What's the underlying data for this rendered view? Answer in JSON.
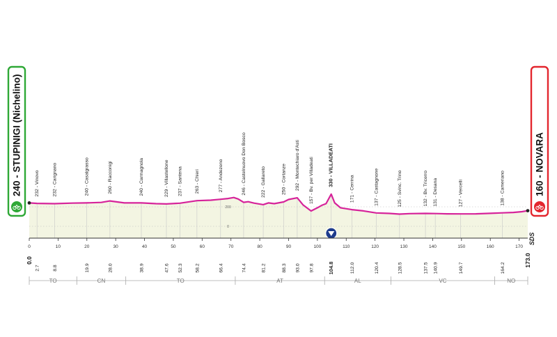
{
  "chart_data": {
    "type": "area",
    "title": "",
    "xlabel": "",
    "ylabel": "",
    "xlim": [
      0,
      173
    ],
    "ylim": [
      0,
      330
    ],
    "colors": {
      "profile_line": "#d6239a",
      "profile_fill": "#f3f5e2",
      "start_badge_border": "#2ea836",
      "finish_badge_border": "#e3262e",
      "axis": "#333333",
      "grid": "#b9b9b9"
    },
    "start": {
      "label": "240 - STUPINIGI (Nichelino)",
      "km": "0.0",
      "icon": "bike-icon"
    },
    "finish": {
      "label": "160 - NOVARA",
      "km": "173.0",
      "icon": "bike-icon"
    },
    "side_label": "SDS",
    "series": [
      {
        "x": [
          0,
          2.7,
          8.8,
          15,
          19.9,
          25,
          28.0,
          33,
          38.9,
          44,
          47.6,
          52.3,
          58.2,
          63,
          66.4,
          69,
          71,
          72.5,
          74.4,
          76,
          78,
          81.2,
          83,
          85,
          88.3,
          90,
          93.0,
          95,
          97.8,
          100,
          101.5,
          103,
          104.8,
          106,
          108,
          112.0,
          116,
          120.4,
          125,
          128.5,
          132,
          137.5,
          140.9,
          145,
          149.7,
          155,
          160,
          164.2,
          168,
          171,
          173.0
        ],
        "y": [
          240,
          235,
          232,
          238,
          240,
          245,
          260,
          240,
          240,
          232,
          229,
          237,
          263,
          268,
          277,
          285,
          295,
          280,
          246,
          252,
          238,
          222,
          240,
          232,
          250,
          275,
          292,
          220,
          157,
          190,
          215,
          232,
          330,
          240,
          190,
          171,
          158,
          137,
          132,
          125,
          130,
          132,
          131,
          128,
          127,
          128,
          133,
          138,
          142,
          150,
          160
        ]
      }
    ],
    "altitude_ticks": [
      "200",
      "0"
    ],
    "x_ticks": [
      "0",
      "10",
      "20",
      "30",
      "40",
      "50",
      "60",
      "70",
      "80",
      "90",
      "100",
      "110",
      "120",
      "130",
      "140",
      "150",
      "160",
      "170"
    ],
    "locations": [
      {
        "km": 2.7,
        "alt": 232,
        "name": "Vinovo",
        "label": "232 - Vinovo",
        "km_label": "2.7"
      },
      {
        "km": 8.8,
        "alt": 232,
        "name": "Carignano",
        "label": "232 - Carignano",
        "km_label": "8.8"
      },
      {
        "km": 19.9,
        "alt": 240,
        "name": "Casalgrasso",
        "label": "240 - Casalgrasso",
        "km_label": "19.9"
      },
      {
        "km": 28.0,
        "alt": 260,
        "name": "Racconigi",
        "label": "260 - Racconigi",
        "km_label": "28.0"
      },
      {
        "km": 38.9,
        "alt": 240,
        "name": "Carmagnola",
        "label": "240 - Carmagnola",
        "km_label": "38.9"
      },
      {
        "km": 47.6,
        "alt": 229,
        "name": "Villastellone",
        "label": "229 - Villastellone",
        "km_label": "47.6"
      },
      {
        "km": 52.3,
        "alt": 237,
        "name": "Santena",
        "label": "237 - Santena",
        "km_label": "52.3"
      },
      {
        "km": 58.2,
        "alt": 263,
        "name": "Chieri",
        "label": "263 - Chieri",
        "km_label": "58.2"
      },
      {
        "km": 66.4,
        "alt": 277,
        "name": "Andezeno",
        "label": "277 - Andezeno",
        "km_label": "66.4"
      },
      {
        "km": 74.4,
        "alt": 246,
        "name": "Castelnuovo Don Bosco",
        "label": "246 - Castelnuovo Don Bosco",
        "km_label": "74.4"
      },
      {
        "km": 81.2,
        "alt": 222,
        "name": "Gallareto",
        "label": "222 - Gallareto",
        "km_label": "81.2"
      },
      {
        "km": 88.3,
        "alt": 250,
        "name": "Cortanze",
        "label": "250 - Cortanze",
        "km_label": "88.3"
      },
      {
        "km": 93.0,
        "alt": 292,
        "name": "Montechiaro d'Asti",
        "label": "292 - Montechiaro d'Asti",
        "km_label": "93.0"
      },
      {
        "km": 97.8,
        "alt": 157,
        "name": "Bv. per Villadeati",
        "label": "157 - Bv. per Villadeati",
        "km_label": "97.8"
      },
      {
        "km": 104.8,
        "alt": 330,
        "name": "VILLADEATI",
        "label": "330 - VILLADEATI",
        "km_label": "104.8",
        "bold": true
      },
      {
        "km": 112.0,
        "alt": 171,
        "name": "Cerrina",
        "label": "171 - Cerrina",
        "km_label": "112.0"
      },
      {
        "km": 120.4,
        "alt": 137,
        "name": "Castagnone",
        "label": "137 - Castagnone",
        "km_label": "120.4"
      },
      {
        "km": 128.5,
        "alt": 125,
        "name": "Svinc. Trino",
        "label": "125 - Svinc. Trino",
        "km_label": "128.5"
      },
      {
        "km": 137.5,
        "alt": 132,
        "name": "Bv. Tricerro",
        "label": "132 - Bv. Tricerro",
        "km_label": "137.5"
      },
      {
        "km": 140.9,
        "alt": 131,
        "name": "Desana",
        "label": "131 - Desana",
        "km_label": "140.9"
      },
      {
        "km": 149.7,
        "alt": 127,
        "name": "Vercelli",
        "label": "127 - Vercelli",
        "km_label": "149.7"
      },
      {
        "km": 164.2,
        "alt": 138,
        "name": "Cameriano",
        "label": "138 - Cameriano",
        "km_label": "164.2"
      }
    ],
    "kom": {
      "km": 104.8,
      "icon": "kom-marker-icon"
    },
    "provinces": [
      {
        "code": "TO",
        "from": 0,
        "to": 16.5
      },
      {
        "code": "CN",
        "from": 16.5,
        "to": 33.5
      },
      {
        "code": "TO",
        "from": 33.5,
        "to": 71.5
      },
      {
        "code": "AT",
        "from": 71.5,
        "to": 102.5
      },
      {
        "code": "AL",
        "from": 102.5,
        "to": 125.5
      },
      {
        "code": "VC",
        "from": 125.5,
        "to": 161.5
      },
      {
        "code": "NO",
        "from": 161.5,
        "to": 173
      }
    ]
  }
}
